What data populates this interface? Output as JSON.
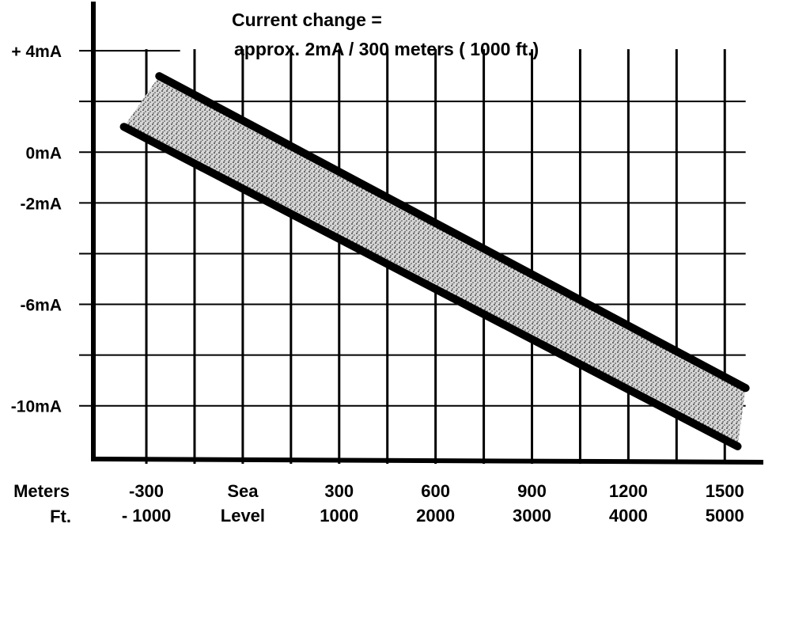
{
  "chart_data": {
    "type": "area",
    "annotation_line1": "Current change =",
    "annotation_line2": "approx. 2mA / 300 meters ( 1000 ft.)",
    "y_tick_labels": [
      "+ 4mA",
      "0mA",
      "-2mA",
      "-6mA",
      "-10mA"
    ],
    "y_tick_values": [
      4,
      0,
      -2,
      -6,
      -10
    ],
    "x_row_labels": [
      "Meters",
      "Ft."
    ],
    "x_ticks": [
      {
        "meters": -300,
        "top": "-300",
        "bottom": "- 1000"
      },
      {
        "meters": 0,
        "top": "Sea",
        "bottom": "Level"
      },
      {
        "meters": 300,
        "top": "300",
        "bottom": "1000"
      },
      {
        "meters": 600,
        "top": "600",
        "bottom": "2000"
      },
      {
        "meters": 900,
        "top": "900",
        "bottom": "3000"
      },
      {
        "meters": 1200,
        "top": "1200",
        "bottom": "4000"
      },
      {
        "meters": 1500,
        "top": "1500",
        "bottom": "5000"
      }
    ],
    "xlim": [
      -465,
      1620
    ],
    "ylim": [
      -12.1,
      6.0
    ],
    "grid": true,
    "grid_step_meters": 150,
    "grid_step_mA": 2,
    "band": {
      "upper": {
        "x": [
          -260,
          1565
        ],
        "y": [
          3.0,
          -9.3
        ]
      },
      "lower": {
        "x": [
          -370,
          1540
        ],
        "y": [
          1.0,
          -11.6
        ]
      }
    }
  }
}
